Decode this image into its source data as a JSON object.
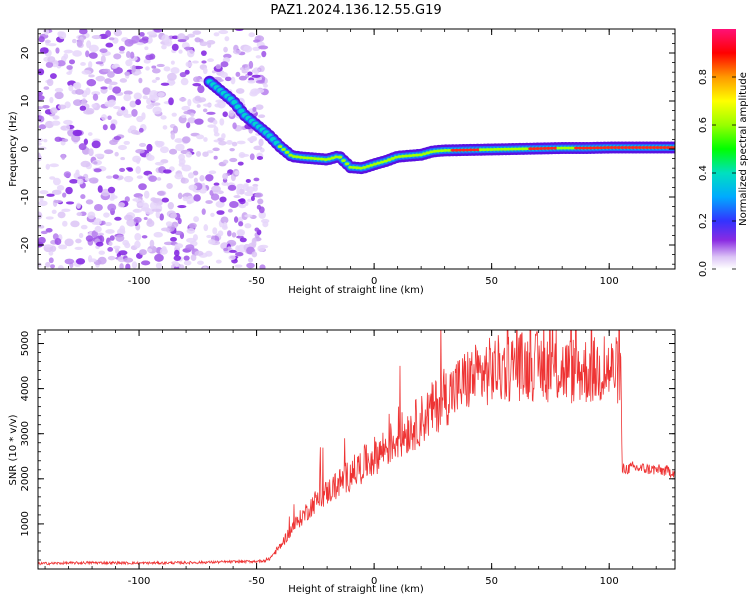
{
  "title": "PAZ1.2024.136.12.55.G19",
  "chart_data": [
    {
      "type": "heatmap",
      "xlabel": "Height of straight line (km)",
      "ylabel": "Frequency (Hz)",
      "xlim": [
        -143,
        128
      ],
      "ylim": [
        -25,
        25
      ],
      "x_ticks": [
        "-100",
        "-50",
        "0",
        "50",
        "100"
      ],
      "y_ticks": [
        "20",
        "10",
        "0",
        "-10",
        "-20"
      ],
      "colorbar": {
        "label": "Normalized spectral amplitude",
        "ticks": [
          "0.0",
          "0.2",
          "0.4",
          "0.6",
          "0.8"
        ],
        "range": [
          0,
          1
        ]
      },
      "ridge": {
        "x": [
          -70,
          -65,
          -60,
          -55,
          -50,
          -45,
          -40,
          -35,
          -30,
          -25,
          -20,
          -15,
          -10,
          -5,
          0,
          5,
          10,
          15,
          20,
          25,
          30,
          40,
          50,
          60,
          70,
          80,
          90,
          100,
          110,
          120,
          128
        ],
        "y": [
          14,
          12,
          10,
          7,
          5,
          3,
          0.5,
          -1.5,
          -1.8,
          -2.0,
          -2.2,
          -1.5,
          -3.8,
          -4.0,
          -3.2,
          -2.5,
          -1.6,
          -1.4,
          -1.2,
          -0.5,
          -0.3,
          -0.2,
          -0.1,
          0,
          0.1,
          0.2,
          0.2,
          0.3,
          0.3,
          0.3,
          0.3
        ]
      },
      "noise_region_x": [
        -143,
        -50
      ]
    },
    {
      "type": "line",
      "xlabel": "Height of straight line (km)",
      "ylabel": "SNR (10 * v/v)",
      "xlim": [
        -143,
        128
      ],
      "ylim": [
        0,
        5300
      ],
      "x_ticks": [
        "-100",
        "-50",
        "0",
        "50",
        "100"
      ],
      "y_ticks": [
        "1000",
        "2000",
        "3000",
        "4000",
        "5000"
      ],
      "series_color": "#ee3333",
      "envelope": {
        "x": [
          -143,
          -120,
          -100,
          -80,
          -60,
          -50,
          -45,
          -40,
          -35,
          -30,
          -25,
          -20,
          -10,
          0,
          10,
          20,
          30,
          40,
          50,
          60,
          70,
          80,
          90,
          100,
          105,
          105.5,
          110,
          120,
          128
        ],
        "y": [
          120,
          140,
          130,
          140,
          160,
          170,
          200,
          500,
          900,
          1200,
          1500,
          1700,
          2100,
          2500,
          2900,
          3300,
          3800,
          4200,
          4400,
          4500,
          4500,
          4400,
          4400,
          4400,
          4400,
          2200,
          2250,
          2200,
          2150
        ]
      }
    }
  ]
}
